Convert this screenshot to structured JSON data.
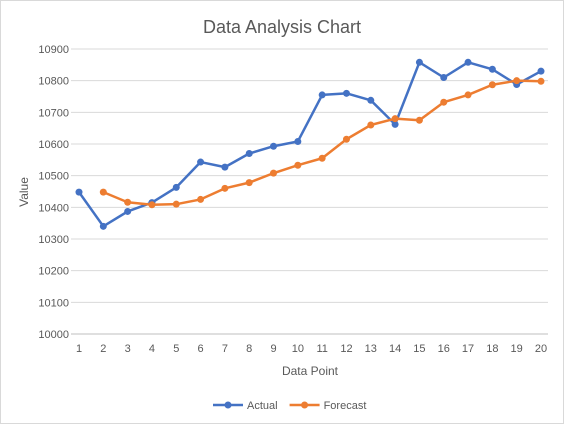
{
  "chart_data": {
    "type": "line",
    "title": "Data Analysis Chart",
    "xlabel": "Data Point",
    "ylabel": "Value",
    "x": [
      1,
      2,
      3,
      4,
      5,
      6,
      7,
      8,
      9,
      10,
      11,
      12,
      13,
      14,
      15,
      16,
      17,
      18,
      19,
      20
    ],
    "ylim": [
      10000,
      10900
    ],
    "yticks": [
      10000,
      10100,
      10200,
      10300,
      10400,
      10500,
      10600,
      10700,
      10800,
      10900
    ],
    "grid": true,
    "legend": "bottom",
    "series": [
      {
        "name": "Actual",
        "color": "#4472c4",
        "values": [
          10448,
          10340,
          10387,
          10415,
          10463,
          10543,
          10527,
          10570,
          10593,
          10608,
          10755,
          10760,
          10738,
          10662,
          10858,
          10810,
          10858,
          10836,
          10788,
          10830
        ]
      },
      {
        "name": "Forecast",
        "color": "#ed7d31",
        "values": [
          null,
          10448,
          10416,
          10408,
          10410,
          10425,
          10460,
          10478,
          10508,
          10533,
          10555,
          10615,
          10660,
          10680,
          10675,
          10732,
          10755,
          10787,
          10800,
          10798
        ]
      }
    ]
  }
}
